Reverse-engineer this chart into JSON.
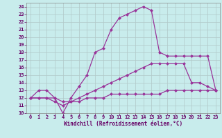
{
  "xlabel": "Windchill (Refroidissement éolien,°C)",
  "bg_color": "#c8ecec",
  "grid_color": "#b0c8c8",
  "line_color": "#993399",
  "xlim": [
    -0.5,
    23.5
  ],
  "ylim": [
    10,
    24.5
  ],
  "xticks": [
    0,
    1,
    2,
    3,
    4,
    5,
    6,
    7,
    8,
    9,
    10,
    11,
    12,
    13,
    14,
    15,
    16,
    17,
    18,
    19,
    20,
    21,
    22,
    23
  ],
  "yticks": [
    10,
    11,
    12,
    13,
    14,
    15,
    16,
    17,
    18,
    19,
    20,
    21,
    22,
    23,
    24
  ],
  "line1_x": [
    0,
    1,
    2,
    3,
    4,
    5,
    6,
    7,
    8,
    9,
    10,
    11,
    12,
    13,
    14,
    15,
    16,
    17,
    18,
    19,
    20,
    21,
    22,
    23
  ],
  "line1_y": [
    12,
    13,
    13,
    12,
    10,
    12,
    13.5,
    15,
    18,
    18.5,
    21,
    22.5,
    23,
    23.5,
    24,
    23.5,
    18,
    17.5,
    17.5,
    17.5,
    17.5,
    17.5,
    17.5,
    13
  ],
  "line2_x": [
    0,
    1,
    2,
    3,
    4,
    5,
    6,
    7,
    8,
    9,
    10,
    11,
    12,
    13,
    14,
    15,
    16,
    17,
    18,
    19,
    20,
    21,
    22,
    23
  ],
  "line2_y": [
    12,
    12,
    12,
    12,
    11.5,
    11.5,
    12,
    12.5,
    13,
    13.5,
    14,
    14.5,
    15,
    15.5,
    16,
    16.5,
    16.5,
    16.5,
    16.5,
    16.5,
    14,
    14,
    13.5,
    13
  ],
  "line3_x": [
    0,
    1,
    2,
    3,
    4,
    5,
    6,
    7,
    8,
    9,
    10,
    11,
    12,
    13,
    14,
    15,
    16,
    17,
    18,
    19,
    20,
    21,
    22,
    23
  ],
  "line3_y": [
    12,
    12,
    12,
    11.5,
    11,
    11.5,
    11.5,
    12,
    12,
    12,
    12.5,
    12.5,
    12.5,
    12.5,
    12.5,
    12.5,
    12.5,
    13,
    13,
    13,
    13,
    13,
    13,
    13
  ],
  "marker": "D",
  "marker_size": 2.0,
  "line_width": 0.9,
  "tick_fontsize": 5,
  "xlabel_fontsize": 5.5
}
